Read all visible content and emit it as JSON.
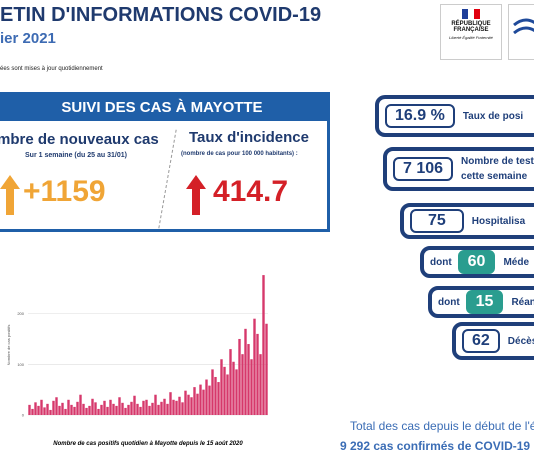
{
  "header": {
    "title": "ETIN D'INFORMATIONS COVID-19",
    "date": "ier 2021",
    "note": "ées sont mises à jour quotidiennement",
    "logo_line1": "RÉPUBLIQUE",
    "logo_line2": "FRANÇAISE",
    "logo_motto": "Liberté Égalité Fraternité"
  },
  "panel": {
    "title": "SUIVI DES CAS À MAYOTTE",
    "cases": {
      "label": "mbre de nouveaux cas",
      "sub": "Sur 1 semaine (du 25 au 31/01)",
      "value": "+1159"
    },
    "incidence": {
      "label": "Taux d'incidence",
      "sub": "(nombre de cas pour 100 000 habitants) :",
      "value": "414.7"
    }
  },
  "indicators": [
    {
      "value": "16.9 %",
      "label": "Taux de posi"
    },
    {
      "value": "7 106",
      "label": "Nombre de test",
      "label2": "cette semaine"
    },
    {
      "value": "75",
      "label": "Hospitalisa"
    },
    {
      "prefix": "dont",
      "value": "60",
      "label": "Méde"
    },
    {
      "prefix": "dont",
      "value": "15",
      "label": "Réani"
    },
    {
      "value": "62",
      "label": "Décès"
    }
  ],
  "total": {
    "line1": "Total des cas depuis le début de l'ép",
    "count": "9 292",
    "line2": "cas confirmés de COVID-19"
  },
  "chart_data": {
    "type": "bar",
    "title": "Nombre de cas positifs quotidien à Mayotte depuis le 15 août 2020",
    "y_label": "Nombre de cas positifs",
    "color": "#d6386b",
    "values": [
      20,
      12,
      25,
      18,
      30,
      15,
      22,
      10,
      28,
      35,
      18,
      24,
      12,
      30,
      20,
      16,
      26,
      40,
      22,
      14,
      18,
      32,
      25,
      12,
      20,
      28,
      16,
      30,
      22,
      18,
      35,
      24,
      14,
      20,
      26,
      38,
      22,
      16,
      28,
      30,
      18,
      24,
      40,
      20,
      26,
      32,
      22,
      45,
      30,
      28,
      36,
      25,
      48,
      40,
      35,
      55,
      42,
      60,
      50,
      70,
      58,
      90,
      75,
      65,
      110,
      95,
      80,
      130,
      105,
      90,
      150,
      120,
      170,
      140,
      110,
      190,
      160,
      120,
      276,
      180
    ],
    "ylim": [
      0,
      290
    ],
    "yticks": [
      0,
      100,
      200
    ],
    "grid": true
  }
}
